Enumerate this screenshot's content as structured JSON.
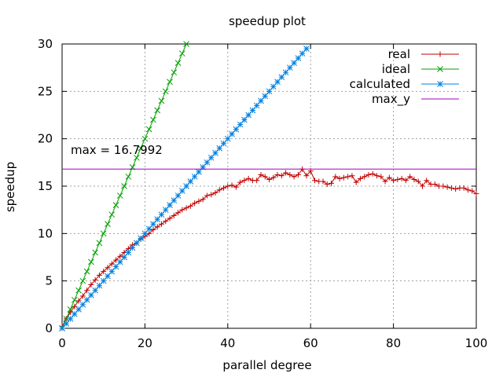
{
  "chart_data": {
    "type": "line",
    "title": "speedup plot",
    "xlabel": "parallel degree",
    "ylabel": "speedup",
    "xlim": [
      0,
      100
    ],
    "ylim": [
      0,
      30
    ],
    "xticks": [
      0,
      20,
      40,
      60,
      80,
      100
    ],
    "yticks": [
      0,
      5,
      10,
      15,
      20,
      25,
      30
    ],
    "grid": true,
    "legend_position": "top-right",
    "annotation": "max = 16.7992",
    "series": [
      {
        "name": "real",
        "color": "#c00000",
        "marker": "plus",
        "x": [
          0,
          1,
          2,
          3,
          4,
          5,
          6,
          7,
          8,
          9,
          10,
          11,
          12,
          13,
          14,
          15,
          16,
          17,
          18,
          19,
          20,
          21,
          22,
          23,
          24,
          25,
          26,
          27,
          28,
          29,
          30,
          31,
          32,
          33,
          34,
          35,
          36,
          37,
          38,
          39,
          40,
          41,
          42,
          43,
          44,
          45,
          46,
          47,
          48,
          49,
          50,
          51,
          52,
          53,
          54,
          55,
          56,
          57,
          58,
          59,
          60,
          61,
          62,
          63,
          64,
          65,
          66,
          67,
          68,
          69,
          70,
          71,
          72,
          73,
          74,
          75,
          76,
          77,
          78,
          79,
          80,
          81,
          82,
          83,
          84,
          85,
          86,
          87,
          88,
          89,
          90,
          91,
          92,
          93,
          94,
          95,
          96,
          97,
          98,
          99,
          100
        ],
        "values": [
          0.2,
          1.0,
          1.7,
          2.3,
          2.9,
          3.4,
          4.0,
          4.6,
          5.1,
          5.6,
          6.0,
          6.4,
          6.8,
          7.2,
          7.6,
          8.0,
          8.4,
          8.8,
          9.0,
          9.4,
          9.7,
          10.0,
          10.4,
          10.7,
          11.0,
          11.3,
          11.6,
          11.9,
          12.2,
          12.5,
          12.7,
          12.9,
          13.2,
          13.4,
          13.6,
          14.0,
          14.1,
          14.3,
          14.6,
          14.8,
          15.0,
          15.1,
          14.9,
          15.4,
          15.6,
          15.8,
          15.6,
          15.6,
          16.2,
          16.0,
          15.7,
          15.9,
          16.2,
          16.1,
          16.4,
          16.2,
          16.0,
          16.2,
          16.8,
          16.1,
          16.6,
          15.6,
          15.5,
          15.5,
          15.2,
          15.3,
          16.0,
          15.8,
          15.9,
          16.0,
          16.1,
          15.4,
          15.8,
          16.0,
          16.2,
          16.3,
          16.1,
          16.0,
          15.5,
          15.9,
          15.6,
          15.7,
          15.8,
          15.6,
          16.0,
          15.7,
          15.5,
          15.0,
          15.6,
          15.2,
          15.2,
          15.0,
          15.0,
          14.9,
          14.8,
          14.7,
          14.8,
          14.8,
          14.6,
          14.5,
          14.2
        ]
      },
      {
        "name": "ideal",
        "color": "#00a000",
        "marker": "x",
        "x": [
          0,
          1,
          2,
          3,
          4,
          5,
          6,
          7,
          8,
          9,
          10,
          11,
          12,
          13,
          14,
          15,
          16,
          17,
          18,
          19,
          20,
          21,
          22,
          23,
          24,
          25,
          26,
          27,
          28,
          29,
          30
        ],
        "values": [
          0,
          1,
          2,
          3,
          4,
          5,
          6,
          7,
          8,
          9,
          10,
          11,
          12,
          13,
          14,
          15,
          16,
          17,
          18,
          19,
          20,
          21,
          22,
          23,
          24,
          25,
          26,
          27,
          28,
          29,
          30
        ]
      },
      {
        "name": "calculated",
        "color": "#0080e0",
        "marker": "star",
        "x": [
          0,
          1,
          2,
          3,
          4,
          5,
          6,
          7,
          8,
          9,
          10,
          11,
          12,
          13,
          14,
          15,
          16,
          17,
          18,
          19,
          20,
          21,
          22,
          23,
          24,
          25,
          26,
          27,
          28,
          29,
          30,
          31,
          32,
          33,
          34,
          35,
          36,
          37,
          38,
          39,
          40,
          41,
          42,
          43,
          44,
          45,
          46,
          47,
          48,
          49,
          50,
          51,
          52,
          53,
          54,
          55,
          56,
          57,
          58,
          59
        ],
        "values": [
          0,
          0.5,
          1,
          1.5,
          2,
          2.5,
          3,
          3.5,
          4,
          4.5,
          5,
          5.5,
          6,
          6.5,
          7,
          7.5,
          8,
          8.5,
          9,
          9.5,
          10,
          10.5,
          11,
          11.5,
          12,
          12.5,
          13,
          13.5,
          14,
          14.5,
          15,
          15.5,
          16,
          16.5,
          17,
          17.5,
          18,
          18.5,
          19,
          19.5,
          20,
          20.5,
          21,
          21.5,
          22,
          22.5,
          23,
          23.5,
          24,
          24.5,
          25,
          25.5,
          26,
          26.5,
          27,
          27.5,
          28,
          28.5,
          29,
          29.5
        ]
      },
      {
        "name": "max_y",
        "color": "#a000c0",
        "marker": "none",
        "x": [
          0,
          100
        ],
        "values": [
          16.7992,
          16.7992
        ]
      }
    ]
  }
}
